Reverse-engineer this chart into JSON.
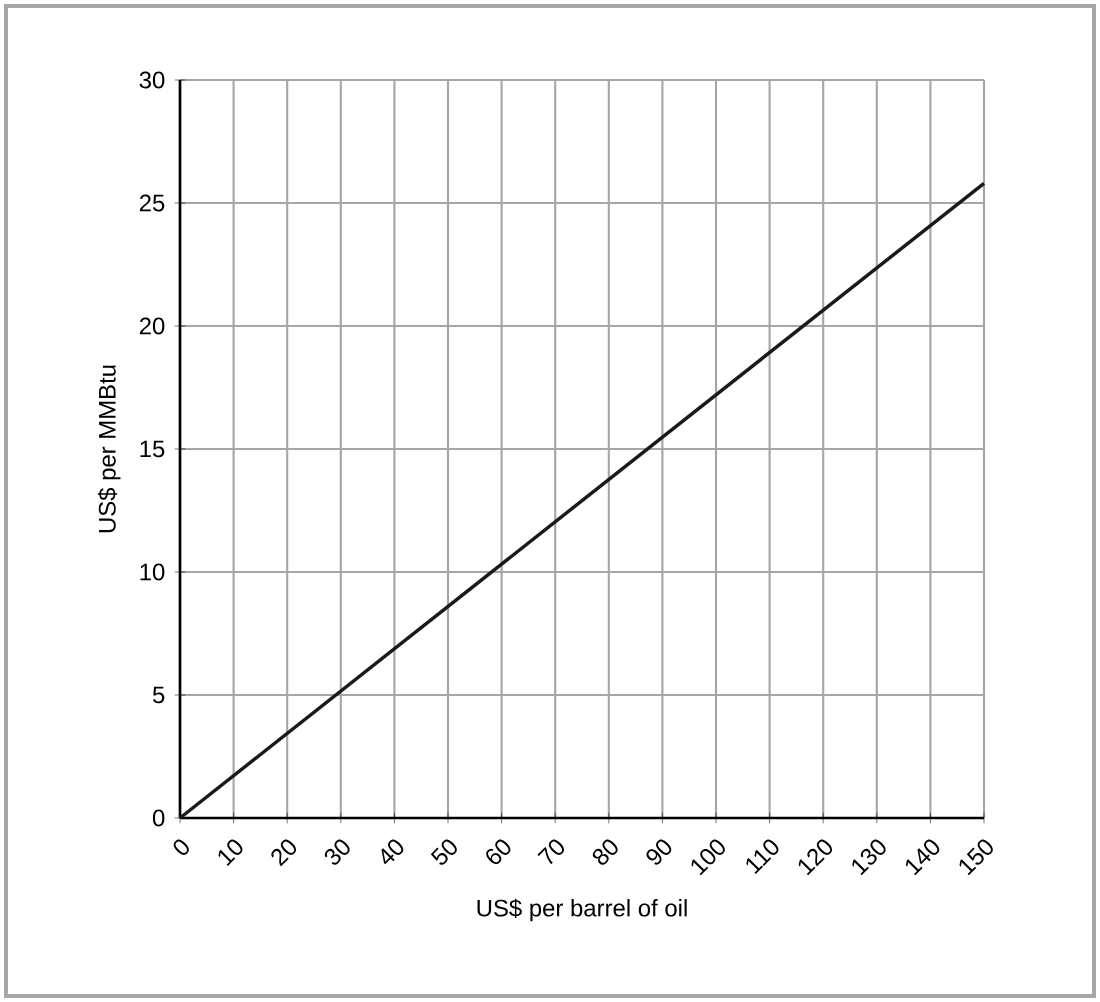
{
  "chart_data": {
    "type": "line",
    "xlabel": "US$ per barrel of oil",
    "ylabel": "US$ per MMBtu",
    "x": [
      0,
      150
    ],
    "series": [
      {
        "color": "#1a1a1a",
        "values": [
          0,
          25.8
        ]
      }
    ],
    "xlim": [
      0,
      150
    ],
    "ylim": [
      0,
      30
    ],
    "xticks": [
      0,
      10,
      20,
      30,
      40,
      50,
      60,
      70,
      80,
      90,
      100,
      110,
      120,
      130,
      140,
      150
    ],
    "yticks": [
      0,
      5,
      10,
      15,
      20,
      25,
      30
    ],
    "grid": true,
    "marker": "none",
    "line_style": "solid"
  }
}
